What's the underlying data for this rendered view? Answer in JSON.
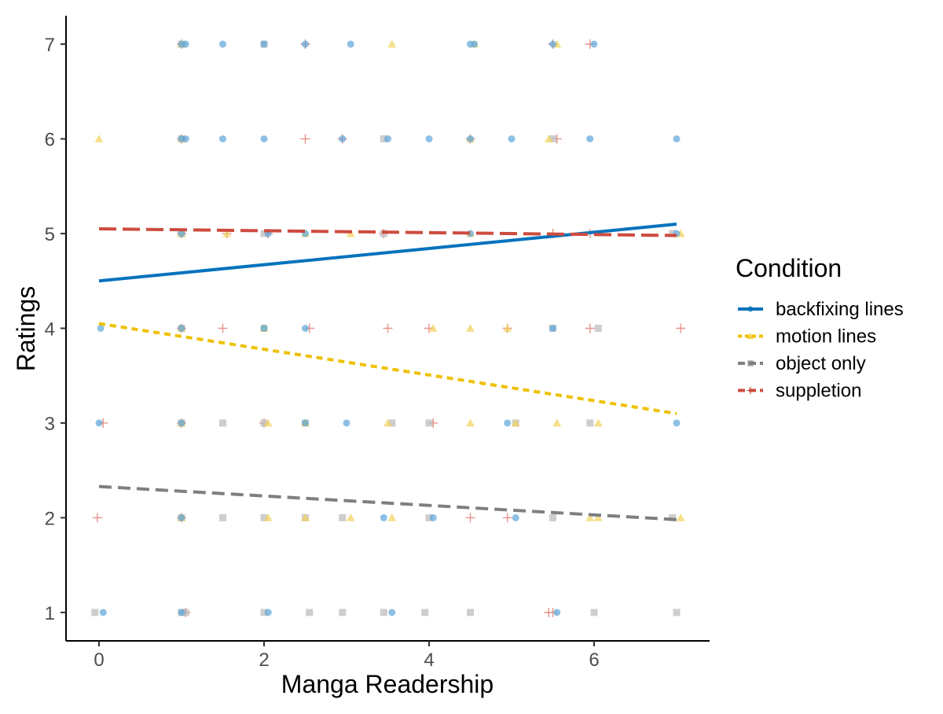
{
  "chart_data": {
    "type": "scatter",
    "title": "",
    "xlabel": "Manga Readership",
    "ylabel": "Ratings",
    "xlim": [
      -0.4,
      7.4
    ],
    "ylim": [
      0.7,
      7.3
    ],
    "x_ticks": [
      0,
      2,
      4,
      6
    ],
    "y_ticks": [
      1,
      2,
      3,
      4,
      5,
      6,
      7
    ],
    "grid": false,
    "legend": {
      "title": "Condition",
      "position": "right"
    },
    "series": [
      {
        "name": "backfixing lines",
        "color": "#0072BD",
        "point_color": "#5DA5DA",
        "shape": "circle",
        "line_style": "solid",
        "fit_line": {
          "x": [
            0,
            7
          ],
          "y": [
            4.5,
            5.1
          ]
        },
        "points": [
          [
            1,
            7
          ],
          [
            1.05,
            7
          ],
          [
            1.5,
            7
          ],
          [
            2.0,
            7
          ],
          [
            2.5,
            7
          ],
          [
            3.05,
            7
          ],
          [
            4.5,
            7
          ],
          [
            4.55,
            7
          ],
          [
            5.5,
            7
          ],
          [
            6.0,
            7
          ],
          [
            1,
            6
          ],
          [
            1.05,
            6
          ],
          [
            1.5,
            6
          ],
          [
            2.0,
            6
          ],
          [
            2.95,
            6
          ],
          [
            3.5,
            6
          ],
          [
            4.0,
            6
          ],
          [
            4.5,
            6
          ],
          [
            5.0,
            6
          ],
          [
            5.95,
            6
          ],
          [
            7.0,
            6
          ],
          [
            1,
            5
          ],
          [
            2.05,
            5
          ],
          [
            2.5,
            5
          ],
          [
            4.5,
            5
          ],
          [
            7.0,
            5
          ],
          [
            0.02,
            4
          ],
          [
            1,
            4
          ],
          [
            2.0,
            4
          ],
          [
            2.5,
            4
          ],
          [
            5.5,
            4
          ],
          [
            0,
            3
          ],
          [
            1,
            3
          ],
          [
            2.5,
            3
          ],
          [
            3.0,
            3
          ],
          [
            4.95,
            3
          ],
          [
            7.0,
            3
          ],
          [
            1,
            2
          ],
          [
            3.45,
            2
          ],
          [
            4.05,
            2
          ],
          [
            5.05,
            2
          ],
          [
            0.05,
            1
          ],
          [
            1,
            1
          ],
          [
            2.05,
            1
          ],
          [
            3.55,
            1
          ],
          [
            5.55,
            1
          ]
        ]
      },
      {
        "name": "motion lines",
        "color": "#EFC000",
        "point_color": "#F2D35A",
        "shape": "triangle",
        "line_style": "dotted",
        "fit_line": {
          "x": [
            0,
            7
          ],
          "y": [
            4.05,
            3.1
          ]
        },
        "points": [
          [
            1,
            7
          ],
          [
            3.55,
            7
          ],
          [
            4.55,
            7
          ],
          [
            5.55,
            7
          ],
          [
            0,
            6
          ],
          [
            1,
            6
          ],
          [
            4.5,
            6
          ],
          [
            5.45,
            6
          ],
          [
            1,
            5
          ],
          [
            1.55,
            5
          ],
          [
            2.5,
            5
          ],
          [
            3.05,
            5
          ],
          [
            4.5,
            5
          ],
          [
            7.05,
            5
          ],
          [
            1,
            4
          ],
          [
            2.0,
            4
          ],
          [
            4.05,
            4
          ],
          [
            4.5,
            4
          ],
          [
            4.95,
            4
          ],
          [
            1,
            3
          ],
          [
            2.05,
            3
          ],
          [
            2.5,
            3
          ],
          [
            3.5,
            3
          ],
          [
            4.5,
            3
          ],
          [
            5.05,
            3
          ],
          [
            5.55,
            3
          ],
          [
            6.05,
            3
          ],
          [
            1,
            2
          ],
          [
            2.05,
            2
          ],
          [
            2.5,
            2
          ],
          [
            3.05,
            2
          ],
          [
            3.55,
            2
          ],
          [
            5.95,
            2
          ],
          [
            6.05,
            2
          ],
          [
            7.05,
            2
          ]
        ]
      },
      {
        "name": "object only",
        "color": "#7F7F7F",
        "point_color": "#BDBDBD",
        "shape": "square",
        "line_style": "dashed",
        "fit_line": {
          "x": [
            0,
            7
          ],
          "y": [
            2.33,
            1.98
          ]
        },
        "points": [
          [
            1,
            7
          ],
          [
            2.0,
            7
          ],
          [
            1,
            6
          ],
          [
            3.45,
            6
          ],
          [
            5.5,
            6
          ],
          [
            1,
            5
          ],
          [
            2.0,
            5
          ],
          [
            3.45,
            5
          ],
          [
            6.95,
            5
          ],
          [
            1,
            4
          ],
          [
            2.0,
            4
          ],
          [
            5.5,
            4
          ],
          [
            6.05,
            4
          ],
          [
            1,
            3
          ],
          [
            1.5,
            3
          ],
          [
            2.0,
            3
          ],
          [
            2.5,
            3
          ],
          [
            3.55,
            3
          ],
          [
            4.0,
            3
          ],
          [
            5.05,
            3
          ],
          [
            5.95,
            3
          ],
          [
            1,
            2
          ],
          [
            1.5,
            2
          ],
          [
            2.0,
            2
          ],
          [
            2.5,
            2
          ],
          [
            2.95,
            2
          ],
          [
            4.0,
            2
          ],
          [
            5.5,
            2
          ],
          [
            6.95,
            2
          ],
          [
            -0.05,
            1
          ],
          [
            1,
            1
          ],
          [
            1.05,
            1
          ],
          [
            2.0,
            1
          ],
          [
            2.55,
            1
          ],
          [
            2.95,
            1
          ],
          [
            3.45,
            1
          ],
          [
            3.95,
            1
          ],
          [
            4.5,
            1
          ],
          [
            6.0,
            1
          ],
          [
            7.0,
            1
          ]
        ]
      },
      {
        "name": "suppletion",
        "color": "#CD4B3F",
        "point_color": "#E8938A",
        "shape": "plus",
        "line_style": "longdash",
        "fit_line": {
          "x": [
            0,
            7
          ],
          "y": [
            5.05,
            4.98
          ]
        },
        "points": [
          [
            1,
            7
          ],
          [
            2.5,
            7
          ],
          [
            5.5,
            7
          ],
          [
            5.95,
            7
          ],
          [
            1,
            6
          ],
          [
            2.5,
            6
          ],
          [
            2.95,
            6
          ],
          [
            4.5,
            6
          ],
          [
            5.55,
            6
          ],
          [
            1,
            5
          ],
          [
            1.55,
            5
          ],
          [
            2.05,
            5
          ],
          [
            3.45,
            5
          ],
          [
            5.5,
            5
          ],
          [
            5.95,
            5
          ],
          [
            1,
            4
          ],
          [
            1.5,
            4
          ],
          [
            2.55,
            4
          ],
          [
            3.5,
            4
          ],
          [
            4.0,
            4
          ],
          [
            4.95,
            4
          ],
          [
            5.95,
            4
          ],
          [
            7.05,
            4
          ],
          [
            0.05,
            3
          ],
          [
            1,
            3
          ],
          [
            2.0,
            3
          ],
          [
            4.05,
            3
          ],
          [
            -0.02,
            2
          ],
          [
            1,
            2
          ],
          [
            4.5,
            2
          ],
          [
            4.95,
            2
          ],
          [
            1.05,
            1
          ],
          [
            5.45,
            1
          ],
          [
            5.5,
            1
          ]
        ]
      }
    ]
  }
}
